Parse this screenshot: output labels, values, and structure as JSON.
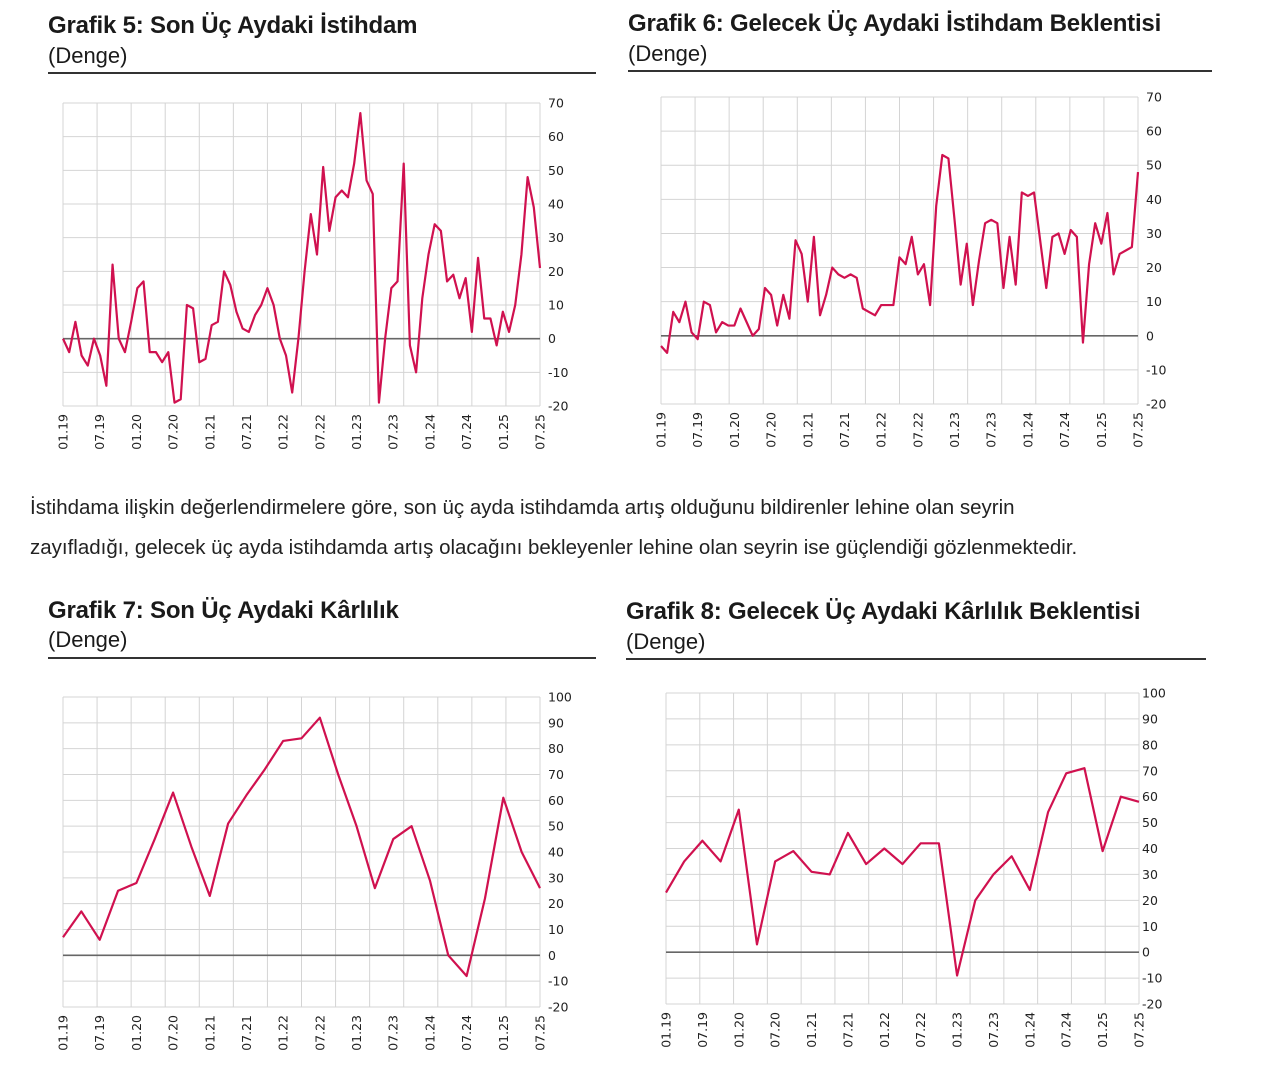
{
  "paragraph": {
    "line1": "İstihdama ilişkin değerlendirmelere göre, son üç ayda istihdamda artış olduğunu bildirenler lehine olan seyrin",
    "line2": "zayıfladığı, gelecek üç ayda istihdamda artış olacağını bekleyenler lehine olan seyrin ise güçlendiği gözlenmektedir."
  },
  "colors": {
    "line": "#d0114f",
    "grid": "#d4d4d4",
    "zero": "#666666",
    "text": "#222222"
  },
  "chart_data": [
    {
      "id": "g5",
      "type": "line",
      "title": "Grafik 5: Son Üç Aydaki İstihdam",
      "subtitle": "(Denge)",
      "xlabel": "",
      "ylabel": "",
      "grid": true,
      "ylim": [
        -20,
        70
      ],
      "yticks": [
        70,
        60,
        50,
        40,
        30,
        20,
        10,
        0,
        -10,
        -20
      ],
      "xticks": [
        "01.19",
        "07.19",
        "01.20",
        "07.20",
        "01.21",
        "07.21",
        "01.22",
        "07.22",
        "01.23",
        "07.23",
        "01.24",
        "07.24",
        "01.25",
        "07.25"
      ],
      "x_start": "01.19",
      "frequency": "monthly",
      "series": [
        {
          "name": "Denge",
          "values": [
            0,
            -4,
            5,
            -5,
            -8,
            0,
            -5,
            -14,
            22,
            0,
            -4,
            5,
            15,
            17,
            -4,
            -4,
            -7,
            -4,
            -19,
            -18,
            10,
            9,
            -7,
            -6,
            4,
            5,
            20,
            16,
            8,
            3,
            2,
            7,
            10,
            15,
            10,
            0,
            -5,
            -16,
            0,
            20,
            37,
            25,
            51,
            32,
            42,
            44,
            42,
            52,
            67,
            47,
            43,
            -19,
            0,
            15,
            17,
            52,
            -2,
            -10,
            12,
            25,
            34,
            32,
            17,
            19,
            12,
            18,
            2,
            24,
            6,
            6,
            -2,
            8,
            2,
            10,
            25,
            48,
            39,
            21
          ]
        }
      ]
    },
    {
      "id": "g6",
      "type": "line",
      "title": "Grafik 6: Gelecek Üç Aydaki İstihdam Beklentisi",
      "subtitle": "(Denge)",
      "xlabel": "",
      "ylabel": "",
      "grid": true,
      "ylim": [
        -20,
        70
      ],
      "yticks": [
        70,
        60,
        50,
        40,
        30,
        20,
        10,
        0,
        -10,
        -20
      ],
      "xticks": [
        "01.19",
        "07.19",
        "01.20",
        "07.20",
        "01.21",
        "07.21",
        "01.22",
        "07.22",
        "01.23",
        "07.23",
        "01.24",
        "07.24",
        "01.25",
        "07.25"
      ],
      "x_start": "01.19",
      "frequency": "monthly",
      "series": [
        {
          "name": "Denge",
          "values": [
            -3,
            -5,
            7,
            4,
            10,
            1,
            -1,
            10,
            9,
            1,
            4,
            3,
            3,
            8,
            4,
            0,
            2,
            14,
            12,
            3,
            12,
            5,
            28,
            24,
            10,
            29,
            6,
            12,
            20,
            18,
            17,
            18,
            17,
            8,
            7,
            6,
            9,
            9,
            9,
            23,
            21,
            29,
            18,
            21,
            9,
            38,
            53,
            52,
            34,
            15,
            27,
            9,
            22,
            33,
            34,
            33,
            14,
            29,
            15,
            42,
            41,
            42,
            28,
            14,
            29,
            30,
            24,
            31,
            29,
            -2,
            21,
            33,
            27,
            36,
            18,
            24,
            25,
            26,
            48
          ]
        }
      ]
    },
    {
      "id": "g7",
      "type": "line",
      "title": "Grafik 7: Son Üç Aydaki Kârlılık",
      "subtitle": "(Denge)",
      "xlabel": "",
      "ylabel": "",
      "grid": true,
      "ylim": [
        -20,
        100
      ],
      "yticks": [
        100,
        90,
        80,
        70,
        60,
        50,
        40,
        30,
        20,
        10,
        0,
        -10,
        -20
      ],
      "xticks": [
        "01.19",
        "07.19",
        "01.20",
        "07.20",
        "01.21",
        "07.21",
        "01.22",
        "07.22",
        "01.23",
        "07.23",
        "01.24",
        "07.24",
        "01.25",
        "07.25"
      ],
      "x_start": "01.19",
      "frequency": "quarterly",
      "series": [
        {
          "name": "Denge",
          "values": [
            7,
            17,
            6,
            25,
            28,
            45,
            63,
            42,
            23,
            51,
            62,
            72,
            83,
            84,
            92,
            70,
            50,
            26,
            45,
            50,
            29,
            0,
            -8,
            22,
            61,
            40,
            26
          ]
        }
      ]
    },
    {
      "id": "g8",
      "type": "line",
      "title": "Grafik 8: Gelecek Üç Aydaki Kârlılık Beklentisi",
      "subtitle": "(Denge)",
      "xlabel": "",
      "ylabel": "",
      "grid": true,
      "ylim": [
        -20,
        100
      ],
      "yticks": [
        100,
        90,
        80,
        70,
        60,
        50,
        40,
        30,
        20,
        10,
        0,
        -10,
        -20
      ],
      "xticks": [
        "01.19",
        "07.19",
        "01.20",
        "07.20",
        "01.21",
        "07.21",
        "01.22",
        "07.22",
        "01.23",
        "07.23",
        "01.24",
        "07.24",
        "01.25",
        "07.25"
      ],
      "x_start": "01.19",
      "frequency": "quarterly",
      "series": [
        {
          "name": "Denge",
          "values": [
            23,
            35,
            43,
            35,
            55,
            3,
            35,
            39,
            31,
            30,
            46,
            34,
            40,
            34,
            42,
            42,
            -9,
            20,
            30,
            37,
            24,
            54,
            69,
            71,
            39,
            60,
            58
          ]
        }
      ]
    }
  ]
}
